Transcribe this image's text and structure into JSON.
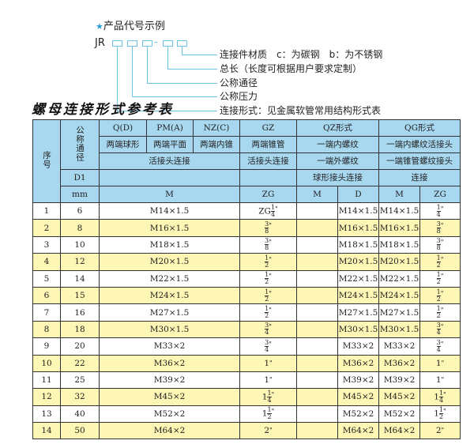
{
  "legend": {
    "heading": "产品代号示例",
    "code_prefix": "JR",
    "dash": "-",
    "labels": [
      "连接件材质　c：为碳钢　b：为不锈钢",
      "总长（长度可根据用户要求定制）",
      "公称通径",
      "公称压力",
      "连接形式：见金属软管常用结构形式表"
    ]
  },
  "title": "螺母连接形式参考表",
  "header": {
    "seq": "序号",
    "nominal": "公称通径",
    "d1": "D1",
    "mm": "mm",
    "q": "Q(D)",
    "pm": "PM(A)",
    "nz": "NZ(C)",
    "gz": "GZ",
    "qz": "QZ形式",
    "qg": "QG形式",
    "q_desc": "两端球形",
    "pm_desc": "两端平面",
    "nz_desc": "两端内锥",
    "gz_desc": "两端锥管",
    "qz_desc1": "一端内螺纹",
    "qg_desc1": "一端内螺纹活接头",
    "union": "活接头连接",
    "gz_union": "活接头连接",
    "qz_desc2": "一端外螺纹",
    "qg_desc2": "一端锥管螺纹接头",
    "qz_desc3": "球形接头连接",
    "qg_desc3": "连接",
    "m": "M",
    "zg": "ZG",
    "qz_m": "M",
    "qz_d": "D",
    "qg_m": "M",
    "qg_zg": "ZG"
  },
  "rows": [
    {
      "no": "1",
      "dn": "6",
      "m": "M14×1.5",
      "zg": {
        "prefix": "ZG",
        "whole": "",
        "num": "1",
        "den": "4"
      },
      "qz_m": "",
      "qz_d": "M14×1.5",
      "qg_m": "M14×1.5",
      "qg_zg": {
        "prefix": "",
        "whole": "",
        "num": "1",
        "den": "4"
      }
    },
    {
      "no": "2",
      "dn": "8",
      "m": "M16×1.5",
      "zg": {
        "prefix": "",
        "whole": "",
        "num": "3",
        "den": "8"
      },
      "qz_m": "",
      "qz_d": "M16×1.5",
      "qg_m": "M16×1.5",
      "qg_zg": {
        "prefix": "",
        "whole": "",
        "num": "3",
        "den": "8"
      }
    },
    {
      "no": "3",
      "dn": "10",
      "m": "M18×1.5",
      "zg": {
        "prefix": "",
        "whole": "",
        "num": "3",
        "den": "8"
      },
      "qz_m": "",
      "qz_d": "M18×1.5",
      "qg_m": "M18×1.5",
      "qg_zg": {
        "prefix": "",
        "whole": "",
        "num": "3",
        "den": "8"
      }
    },
    {
      "no": "4",
      "dn": "12",
      "m": "M20×1.5",
      "zg": {
        "prefix": "",
        "whole": "",
        "num": "1",
        "den": "2"
      },
      "qz_m": "",
      "qz_d": "M20×1.5",
      "qg_m": "M20×1.5",
      "qg_zg": {
        "prefix": "",
        "whole": "",
        "num": "1",
        "den": "2"
      }
    },
    {
      "no": "5",
      "dn": "14",
      "m": "M22×1.5",
      "zg": {
        "prefix": "",
        "whole": "",
        "num": "1",
        "den": "2"
      },
      "qz_m": "",
      "qz_d": "M22×1.5",
      "qg_m": "M22×1.5",
      "qg_zg": {
        "prefix": "",
        "whole": "",
        "num": "1",
        "den": "2"
      }
    },
    {
      "no": "6",
      "dn": "15",
      "m": "M24×1.5",
      "zg": {
        "prefix": "",
        "whole": "",
        "num": "1",
        "den": "2"
      },
      "qz_m": "",
      "qz_d": "M24×1.5",
      "qg_m": "M24×1.5",
      "qg_zg": {
        "prefix": "",
        "whole": "",
        "num": "1",
        "den": "2"
      }
    },
    {
      "no": "7",
      "dn": "16",
      "m": "M27×1.5",
      "zg": {
        "prefix": "",
        "whole": "",
        "num": "1",
        "den": "2"
      },
      "qz_m": "",
      "qz_d": "M27×1.5",
      "qg_m": "M27×1.5",
      "qg_zg": {
        "prefix": "",
        "whole": "",
        "num": "1",
        "den": "2"
      }
    },
    {
      "no": "8",
      "dn": "18",
      "m": "M30×1.5",
      "zg": {
        "prefix": "",
        "whole": "",
        "num": "3",
        "den": "4"
      },
      "qz_m": "",
      "qz_d": "M30×1.5",
      "qg_m": "M30×1.5",
      "qg_zg": {
        "prefix": "",
        "whole": "",
        "num": "3",
        "den": "4"
      }
    },
    {
      "no": "9",
      "dn": "20",
      "m": "M33×2",
      "zg": {
        "prefix": "",
        "whole": "",
        "num": "3",
        "den": "4"
      },
      "qz_m": "",
      "qz_d": "M33×2",
      "qg_m": "M33×2",
      "qg_zg": {
        "prefix": "",
        "whole": "",
        "num": "3",
        "den": "4"
      }
    },
    {
      "no": "10",
      "dn": "22",
      "m": "M36×2",
      "zg": {
        "prefix": "",
        "whole": "1",
        "num": "",
        "den": ""
      },
      "qz_m": "",
      "qz_d": "M36×2",
      "qg_m": "M36×2",
      "qg_zg": {
        "prefix": "",
        "whole": "1",
        "num": "",
        "den": ""
      }
    },
    {
      "no": "11",
      "dn": "25",
      "m": "M39×2",
      "zg": {
        "prefix": "",
        "whole": "1",
        "num": "",
        "den": ""
      },
      "qz_m": "",
      "qz_d": "M39×2",
      "qg_m": "M39×2",
      "qg_zg": {
        "prefix": "",
        "whole": "1",
        "num": "",
        "den": ""
      }
    },
    {
      "no": "12",
      "dn": "32",
      "m": "M45×2",
      "zg": {
        "prefix": "",
        "whole": "1",
        "num": "1",
        "den": "4"
      },
      "qz_m": "",
      "qz_d": "M45×2",
      "qg_m": "M45×2",
      "qg_zg": {
        "prefix": "",
        "whole": "1",
        "num": "1",
        "den": "4"
      }
    },
    {
      "no": "13",
      "dn": "40",
      "m": "M52×2",
      "zg": {
        "prefix": "",
        "whole": "1",
        "num": "1",
        "den": "2"
      },
      "qz_m": "",
      "qz_d": "M52×2",
      "qg_m": "M52×2",
      "qg_zg": {
        "prefix": "",
        "whole": "1",
        "num": "1",
        "den": "2"
      }
    },
    {
      "no": "14",
      "dn": "50",
      "m": "M64×2",
      "zg": {
        "prefix": "",
        "whole": "2",
        "num": "",
        "den": ""
      },
      "qz_m": "",
      "qz_d": "M64×2",
      "qg_m": "M64×2",
      "qg_zg": {
        "prefix": "",
        "whole": "2",
        "num": "",
        "den": ""
      }
    }
  ],
  "inch_mark": "\"",
  "colors": {
    "header_bg": "#a8d8f0",
    "stripe": "#fdf6b4",
    "accent": "#6cc3e6"
  }
}
